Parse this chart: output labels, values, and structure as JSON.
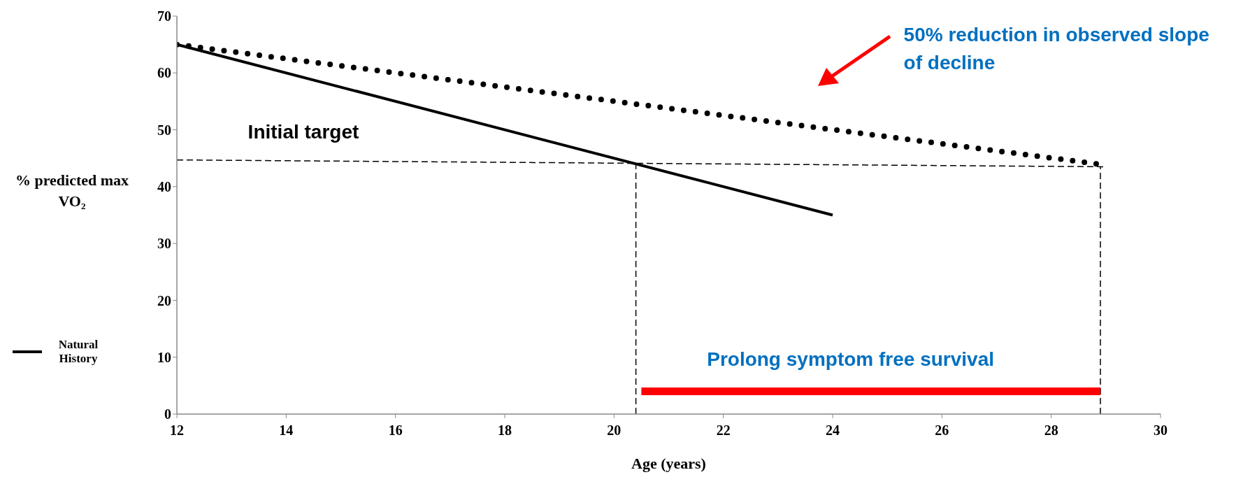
{
  "chart_data": {
    "type": "line",
    "xlabel": "Age (years)",
    "ylabel": "% predicted max VO₂",
    "xlim": [
      12,
      30
    ],
    "ylim": [
      0,
      70
    ],
    "xticks": [
      12,
      14,
      16,
      18,
      20,
      22,
      24,
      26,
      28,
      30
    ],
    "yticks": [
      0,
      10,
      20,
      30,
      40,
      50,
      60,
      70
    ],
    "legend": "left",
    "marker": "none",
    "series": [
      {
        "name": "Natural History",
        "color": "#000000",
        "x": [
          12,
          24
        ],
        "values": [
          65,
          35
        ],
        "line_style": "solid"
      },
      {
        "color": "#000000",
        "x": [
          12,
          29
        ],
        "values": [
          65,
          43.8
        ],
        "line_style": "dotted"
      },
      {
        "color": "#000000",
        "x": [
          12,
          29
        ],
        "values": [
          44.7,
          43.5
        ],
        "line_style": "dashed"
      },
      {
        "color": "#000000",
        "x": [
          20.4,
          20.4
        ],
        "values": [
          0,
          44.3
        ],
        "line_style": "dashed"
      },
      {
        "color": "#000000",
        "x": [
          28.9,
          28.9
        ],
        "values": [
          0,
          43.5
        ],
        "line_style": "dashed"
      },
      {
        "color": "#ff0000",
        "x": [
          20.5,
          28.9
        ],
        "values": [
          4,
          4
        ],
        "line_style": "solid"
      }
    ],
    "annotations": [
      "Initial target",
      "50% reduction in observed slope of decline",
      "Prolong symptom free survival"
    ]
  }
}
